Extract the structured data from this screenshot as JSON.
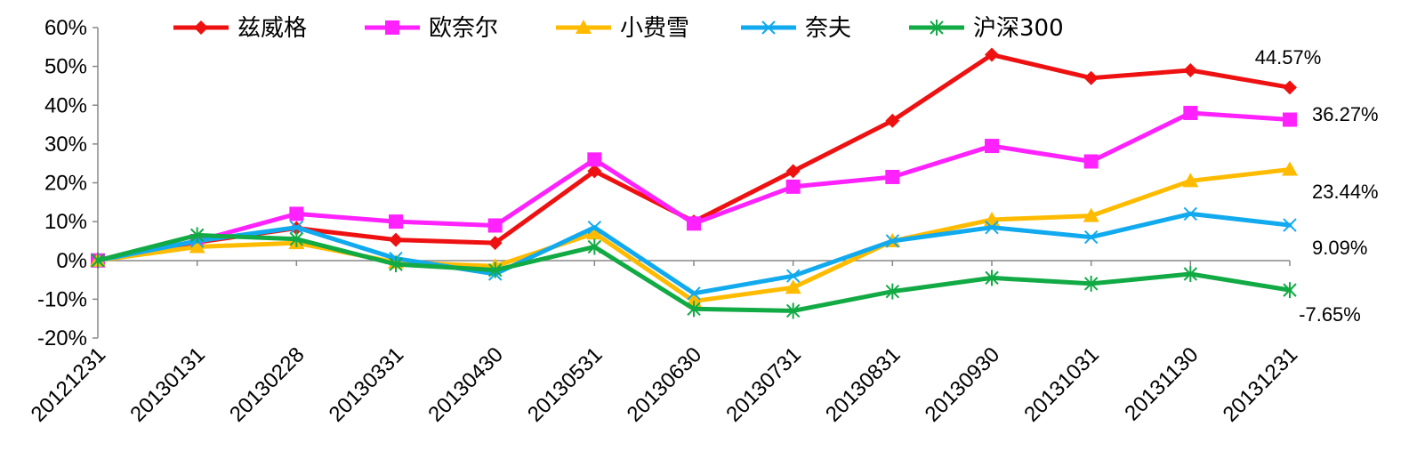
{
  "chart_data": {
    "type": "line",
    "x": [
      "20121231",
      "20130131",
      "20130228",
      "20130331",
      "20130430",
      "20130531",
      "20130630",
      "20130731",
      "20130831",
      "20130930",
      "20131031",
      "20131130",
      "20131231"
    ],
    "ylim": [
      -20,
      60
    ],
    "yticks": [
      "60%",
      "50%",
      "40%",
      "30%",
      "20%",
      "10%",
      "0%",
      "-10%",
      "-20%"
    ],
    "legend_position": "top",
    "series": [
      {
        "name": "兹威格",
        "color": "#ee1111",
        "marker": "diamond",
        "values": [
          0,
          4.7,
          8.3,
          5.3,
          4.5,
          23.0,
          10.0,
          23.0,
          36.0,
          53.0,
          47.0,
          49.0,
          44.57
        ]
      },
      {
        "name": "欧奈尔",
        "color": "#ff22ff",
        "marker": "square",
        "values": [
          0,
          5.0,
          12.0,
          10.0,
          9.0,
          26.0,
          9.5,
          19.0,
          21.5,
          29.5,
          25.5,
          38.0,
          36.27
        ]
      },
      {
        "name": "小费雪",
        "color": "#ffbb00",
        "marker": "triangle",
        "values": [
          0,
          3.5,
          4.5,
          -0.5,
          -1.5,
          7.0,
          -10.5,
          -7.0,
          5.0,
          10.5,
          11.5,
          20.5,
          23.44
        ]
      },
      {
        "name": "奈夫",
        "color": "#11aaee",
        "marker": "x",
        "values": [
          0,
          5.0,
          8.5,
          0.5,
          -3.5,
          8.5,
          -8.5,
          -4.0,
          5.0,
          8.5,
          6.0,
          12.0,
          9.09
        ]
      },
      {
        "name": "沪深300",
        "color": "#11aa44",
        "marker": "star",
        "values": [
          0,
          6.5,
          5.5,
          -1.0,
          -2.5,
          3.5,
          -12.5,
          -13.0,
          -8.0,
          -4.5,
          -6.0,
          -3.5,
          -7.65
        ]
      }
    ],
    "end_labels": [
      "44.57%",
      "36.27%",
      "23.44%",
      "9.09%",
      "-7.65%"
    ]
  }
}
